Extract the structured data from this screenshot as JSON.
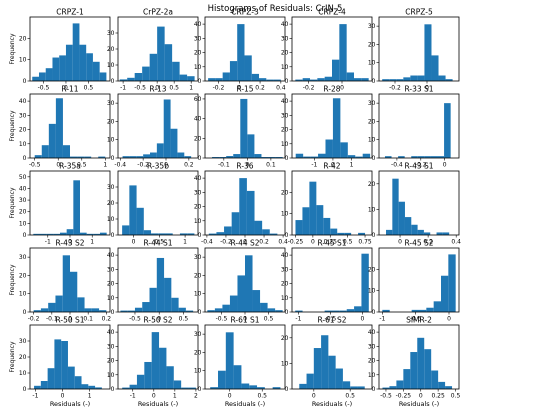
{
  "figure_title": "Histograms of Residuals: CrIN-5",
  "chart_data": [
    {
      "type": "bar",
      "title": "CRPZ-1",
      "xlabel": "",
      "ylabel": "Frequency",
      "xlim": [
        -0.8,
        0.98
      ],
      "ylim": [
        0,
        30
      ],
      "xticks": [
        -0.5,
        0.0,
        0.5
      ],
      "yticks": [
        0,
        10,
        20
      ],
      "bin_edges": [
        -0.75,
        -0.6,
        -0.45,
        -0.3,
        -0.15,
        0.0,
        0.15,
        0.3,
        0.45,
        0.6,
        0.75,
        0.9
      ],
      "values": [
        2,
        4,
        6,
        11,
        12,
        17,
        27,
        17,
        13,
        9,
        4
      ]
    },
    {
      "type": "bar",
      "title": "CrPZ-2a",
      "xlabel": "",
      "ylabel": "",
      "xlim": [
        -1.15,
        1.2
      ],
      "ylim": [
        0,
        40
      ],
      "xticks": [
        -1.0,
        -0.5,
        0.0,
        0.5,
        1.0
      ],
      "yticks": [
        0,
        10,
        20,
        30
      ],
      "bin_edges": [
        -1.1,
        -0.88,
        -0.66,
        -0.44,
        -0.22,
        0.0,
        0.22,
        0.44,
        0.66,
        0.88,
        1.1
      ],
      "values": [
        1,
        2,
        5,
        9,
        17,
        34,
        23,
        12,
        4,
        3
      ]
    },
    {
      "type": "bar",
      "title": "CRPZ-3",
      "xlabel": "",
      "ylabel": "",
      "xlim": [
        -0.33,
        0.44
      ],
      "ylim": [
        0,
        45
      ],
      "xticks": [
        -0.2,
        0.0,
        0.2,
        0.4
      ],
      "yticks": [
        0,
        10,
        20,
        30,
        40
      ],
      "bin_edges": [
        -0.3,
        -0.23,
        -0.16,
        -0.09,
        -0.02,
        0.05,
        0.12,
        0.19,
        0.26,
        0.33,
        0.4
      ],
      "values": [
        2,
        2,
        6,
        14,
        40,
        18,
        5,
        2,
        1,
        1
      ]
    },
    {
      "type": "bar",
      "title": "CRPZ-4",
      "xlabel": "",
      "ylabel": "",
      "xlim": [
        -0.3,
        0.18
      ],
      "ylim": [
        0,
        45
      ],
      "xticks": [
        -0.2,
        0.0
      ],
      "yticks": [
        0,
        10,
        20,
        30,
        40
      ],
      "bin_edges": [
        -0.28,
        -0.236,
        -0.192,
        -0.148,
        -0.104,
        -0.06,
        -0.016,
        0.028,
        0.072,
        0.116,
        0.16
      ],
      "values": [
        1,
        2,
        1,
        2,
        3,
        15,
        40,
        6,
        2,
        2
      ]
    },
    {
      "type": "bar",
      "title": "CRPZ-5",
      "xlabel": "",
      "ylabel": "",
      "xlim": [
        -0.3,
        0.2
      ],
      "ylim": [
        0,
        35
      ],
      "xticks": [
        -0.2,
        0.0
      ],
      "yticks": [
        0,
        10,
        20,
        30
      ],
      "bin_edges": [
        -0.28,
        -0.236,
        -0.192,
        -0.148,
        -0.104,
        -0.06,
        -0.016,
        0.028,
        0.072,
        0.116,
        0.16
      ],
      "values": [
        1,
        1,
        1,
        2,
        3,
        3,
        31,
        14,
        3,
        1
      ]
    },
    {
      "type": "bar",
      "title": "R-11",
      "xlabel": "",
      "ylabel": "Frequency",
      "xlim": [
        -0.6,
        1.1
      ],
      "ylim": [
        0,
        45
      ],
      "xticks": [
        -0.5,
        0.0,
        0.5,
        1.0
      ],
      "yticks": [
        0,
        10,
        20,
        30,
        40
      ],
      "bin_edges": [
        -0.5,
        -0.35,
        -0.2,
        -0.05,
        0.1,
        0.25,
        0.4,
        0.55,
        0.7,
        0.85,
        1.0
      ],
      "values": [
        2,
        9,
        24,
        42,
        9,
        1,
        1,
        1,
        0,
        1
      ]
    },
    {
      "type": "bar",
      "title": "R-13",
      "xlabel": "",
      "ylabel": "",
      "xlim": [
        -0.42,
        0.28
      ],
      "ylim": [
        0,
        35
      ],
      "xticks": [
        -0.4,
        -0.2,
        0.0,
        0.2
      ],
      "yticks": [
        0,
        10,
        20,
        30
      ],
      "bin_edges": [
        -0.38,
        -0.32,
        -0.26,
        -0.2,
        -0.14,
        -0.08,
        -0.02,
        0.04,
        0.1,
        0.16,
        0.22
      ],
      "values": [
        1,
        1,
        1,
        2,
        3,
        8,
        32,
        16,
        3,
        1
      ]
    },
    {
      "type": "bar",
      "title": "R-15",
      "xlabel": "",
      "ylabel": "",
      "xlim": [
        -0.18,
        0.16
      ],
      "ylim": [
        0,
        65
      ],
      "xticks": [
        -0.1,
        0.0,
        0.1
      ],
      "yticks": [
        0,
        20,
        40,
        60
      ],
      "bin_edges": [
        -0.15,
        -0.12,
        -0.09,
        -0.06,
        -0.03,
        0.0,
        0.03,
        0.06,
        0.09,
        0.12,
        0.15
      ],
      "values": [
        1,
        1,
        2,
        4,
        60,
        24,
        4,
        1,
        1,
        1
      ]
    },
    {
      "type": "bar",
      "title": "R-28",
      "xlabel": "",
      "ylabel": "",
      "xlim": [
        -2.2,
        2.1
      ],
      "ylim": [
        0,
        45
      ],
      "xticks": [
        -1,
        0,
        1
      ],
      "yticks": [
        0,
        10,
        20,
        30,
        40
      ],
      "bin_edges": [
        -2.0,
        -1.6,
        -1.2,
        -0.8,
        -0.4,
        0.0,
        0.4,
        0.8,
        1.2,
        1.6,
        2.0
      ],
      "values": [
        3,
        1,
        1,
        3,
        13,
        42,
        11,
        2,
        1,
        3
      ]
    },
    {
      "type": "bar",
      "title": "R-33 S1",
      "xlabel": "",
      "ylabel": "",
      "xlim": [
        -0.55,
        0.12
      ],
      "ylim": [
        0,
        35
      ],
      "xticks": [
        -0.4,
        -0.2,
        0.0
      ],
      "yticks": [
        0,
        10,
        20,
        30
      ],
      "bin_edges": [
        -0.5,
        -0.445,
        -0.39,
        -0.335,
        -0.28,
        -0.225,
        -0.17,
        -0.115,
        -0.06,
        -0.005,
        0.05
      ],
      "values": [
        1,
        0,
        1,
        0,
        1,
        1,
        1,
        1,
        1,
        30
      ]
    },
    {
      "type": "bar",
      "title": "R-35a",
      "xlabel": "",
      "ylabel": "Frequency",
      "xlim": [
        -1.8,
        1.8
      ],
      "ylim": [
        0,
        55
      ],
      "xticks": [
        -1,
        0,
        1
      ],
      "yticks": [
        0,
        10,
        20,
        30,
        40,
        50
      ],
      "bin_edges": [
        -1.65,
        -1.35,
        -1.05,
        -0.75,
        -0.45,
        -0.15,
        0.15,
        0.45,
        0.75,
        1.05,
        1.35,
        1.65
      ],
      "values": [
        1,
        1,
        1,
        1,
        2,
        5,
        47,
        2,
        1,
        1,
        2
      ]
    },
    {
      "type": "bar",
      "title": "R-35b",
      "xlabel": "",
      "ylabel": "",
      "xlim": [
        -0.3,
        1.25
      ],
      "ylim": [
        0,
        40
      ],
      "xticks": [
        0.0,
        0.5,
        1.0
      ],
      "yticks": [
        0,
        10,
        20,
        30
      ],
      "bin_edges": [
        -0.22,
        -0.08,
        0.06,
        0.2,
        0.34,
        0.48,
        0.62,
        0.76,
        0.9,
        1.04,
        1.18
      ],
      "values": [
        6,
        31,
        17,
        3,
        1,
        1,
        1,
        0,
        1,
        1
      ]
    },
    {
      "type": "bar",
      "title": "R-36",
      "xlabel": "",
      "ylabel": "",
      "xlim": [
        -0.42,
        0.42
      ],
      "ylim": [
        0,
        45
      ],
      "xticks": [
        -0.4,
        -0.2,
        0.0,
        0.2,
        0.4
      ],
      "yticks": [
        0,
        10,
        20,
        30,
        40
      ],
      "bin_edges": [
        -0.38,
        -0.3,
        -0.22,
        -0.14,
        -0.06,
        0.02,
        0.1,
        0.18,
        0.26,
        0.34
      ],
      "values": [
        1,
        2,
        6,
        16,
        40,
        31,
        10,
        4,
        1
      ]
    },
    {
      "type": "bar",
      "title": "R-42",
      "xlabel": "",
      "ylabel": "",
      "xlim": [
        -0.3,
        0.85
      ],
      "ylim": [
        0,
        30
      ],
      "xticks": [
        -0.25,
        0.0,
        0.25,
        0.5,
        0.75
      ],
      "yticks": [
        0,
        10,
        20
      ],
      "bin_edges": [
        -0.25,
        -0.15,
        -0.05,
        0.05,
        0.15,
        0.25,
        0.35,
        0.45,
        0.55,
        0.65,
        0.75
      ],
      "values": [
        7,
        13,
        25,
        14,
        8,
        3,
        1,
        1,
        0,
        1
      ]
    },
    {
      "type": "bar",
      "title": "R-43 S1",
      "xlabel": "",
      "ylabel": "",
      "xlim": [
        -0.15,
        0.42
      ],
      "ylim": [
        0,
        25
      ],
      "xticks": [
        0.0,
        0.2,
        0.4
      ],
      "yticks": [
        0,
        10,
        20
      ],
      "bin_edges": [
        -0.1,
        -0.055,
        -0.01,
        0.035,
        0.08,
        0.125,
        0.17,
        0.215,
        0.26,
        0.305,
        0.35
      ],
      "values": [
        2,
        22,
        13,
        7,
        4,
        2,
        1,
        0,
        1,
        1
      ]
    },
    {
      "type": "bar",
      "title": "R-43 S2",
      "xlabel": "",
      "ylabel": "Frequency",
      "xlim": [
        -0.22,
        0.22
      ],
      "ylim": [
        0,
        35
      ],
      "xticks": [
        -0.2,
        -0.1,
        0.0,
        0.1,
        0.2
      ],
      "yticks": [
        0,
        10,
        20,
        30
      ],
      "bin_edges": [
        -0.2,
        -0.16,
        -0.12,
        -0.08,
        -0.04,
        0.0,
        0.04,
        0.08,
        0.12,
        0.16,
        0.2
      ],
      "values": [
        1,
        2,
        5,
        9,
        31,
        22,
        8,
        2,
        2,
        1
      ]
    },
    {
      "type": "bar",
      "title": "R-44 S1",
      "xlabel": "",
      "ylabel": "",
      "xlim": [
        -0.85,
        0.8
      ],
      "ylim": [
        0,
        45
      ],
      "xticks": [
        -0.5,
        0.0,
        0.5
      ],
      "yticks": [
        0,
        10,
        20,
        30,
        40
      ],
      "bin_edges": [
        -0.8,
        -0.65,
        -0.5,
        -0.35,
        -0.2,
        -0.05,
        0.1,
        0.25,
        0.4,
        0.55,
        0.7
      ],
      "values": [
        1,
        1,
        3,
        7,
        17,
        38,
        24,
        10,
        3,
        1
      ]
    },
    {
      "type": "bar",
      "title": "R-44 S2",
      "xlabel": "",
      "ylabel": "",
      "xlim": [
        -0.85,
        0.85
      ],
      "ylim": [
        0,
        35
      ],
      "xticks": [
        -0.5,
        0.0,
        0.5
      ],
      "yticks": [
        0,
        10,
        20,
        30
      ],
      "bin_edges": [
        -0.8,
        -0.64,
        -0.48,
        -0.32,
        -0.16,
        0.0,
        0.16,
        0.32,
        0.48,
        0.64,
        0.8
      ],
      "values": [
        1,
        2,
        4,
        9,
        20,
        31,
        12,
        5,
        2,
        1
      ]
    },
    {
      "type": "bar",
      "title": "R-45 S1",
      "xlabel": "",
      "ylabel": "",
      "xlim": [
        -1.1,
        0.15
      ],
      "ylim": [
        0,
        45
      ],
      "xticks": [
        -1.0,
        -0.5,
        0.0
      ],
      "yticks": [
        0,
        10,
        20,
        30,
        40
      ],
      "bin_edges": [
        -1.05,
        -0.935,
        -0.82,
        -0.705,
        -0.59,
        -0.475,
        -0.36,
        -0.245,
        -0.13,
        -0.015,
        0.1
      ],
      "values": [
        1,
        0,
        0,
        0,
        1,
        1,
        1,
        2,
        4,
        41
      ]
    },
    {
      "type": "bar",
      "title": "R-45 S2",
      "xlabel": "",
      "ylabel": "",
      "xlim": [
        -1.05,
        0.15
      ],
      "ylim": [
        0,
        30
      ],
      "xticks": [
        -1.0,
        -0.5,
        0.0
      ],
      "yticks": [
        0,
        10,
        20
      ],
      "bin_edges": [
        -1.0,
        -0.89,
        -0.78,
        -0.67,
        -0.56,
        -0.45,
        -0.34,
        -0.23,
        -0.12,
        -0.01,
        0.1
      ],
      "values": [
        1,
        0,
        0,
        0,
        1,
        1,
        2,
        5,
        17,
        27
      ]
    },
    {
      "type": "bar",
      "title": "R-50 S1",
      "xlabel": "Residuals (-)",
      "ylabel": "Frequency",
      "xlim": [
        -1.2,
        1.75
      ],
      "ylim": [
        0,
        40
      ],
      "xticks": [
        -1,
        0,
        1
      ],
      "yticks": [
        0,
        10,
        20,
        30
      ],
      "bin_edges": [
        -1.05,
        -0.8,
        -0.55,
        -0.3,
        -0.05,
        0.2,
        0.45,
        0.7,
        0.95,
        1.2,
        1.45
      ],
      "values": [
        2,
        5,
        13,
        31,
        30,
        14,
        8,
        3,
        2,
        1
      ]
    },
    {
      "type": "bar",
      "title": "R-50 S2",
      "xlabel": "Residuals (-)",
      "ylabel": "",
      "xlim": [
        -1.7,
        2.1
      ],
      "ylim": [
        0,
        45
      ],
      "xticks": [
        -1,
        0,
        1,
        2
      ],
      "yticks": [
        0,
        10,
        20,
        30,
        40
      ],
      "bin_edges": [
        -1.5,
        -1.15,
        -0.8,
        -0.45,
        -0.1,
        0.25,
        0.6,
        0.95,
        1.3,
        1.65,
        2.0
      ],
      "values": [
        1,
        3,
        10,
        19,
        40,
        29,
        16,
        6,
        1,
        1
      ]
    },
    {
      "type": "bar",
      "title": "R-61 S1",
      "xlabel": "Residuals (-)",
      "ylabel": "",
      "xlim": [
        -0.38,
        0.85
      ],
      "ylim": [
        0,
        35
      ],
      "xticks": [
        0.0,
        0.5
      ],
      "yticks": [
        0,
        10,
        20,
        30
      ],
      "bin_edges": [
        -0.3,
        -0.18,
        -0.06,
        0.06,
        0.18,
        0.3,
        0.42,
        0.54,
        0.66,
        0.78
      ],
      "values": [
        1,
        10,
        31,
        13,
        3,
        2,
        1,
        0,
        1
      ]
    },
    {
      "type": "bar",
      "title": "R-61 S2",
      "xlabel": "Residuals (-)",
      "ylabel": "",
      "xlim": [
        -0.3,
        0.8
      ],
      "ylim": [
        0,
        25
      ],
      "xticks": [
        0.0,
        0.5
      ],
      "yticks": [
        0,
        10,
        20
      ],
      "bin_edges": [
        -0.2,
        -0.1,
        0.0,
        0.1,
        0.2,
        0.3,
        0.4,
        0.5,
        0.6,
        0.7
      ],
      "values": [
        2,
        6,
        16,
        21,
        13,
        8,
        3,
        1,
        1
      ]
    },
    {
      "type": "bar",
      "title": "SIMR-2",
      "xlabel": "Residuals (-)",
      "ylabel": "",
      "xlim": [
        -0.6,
        0.55
      ],
      "ylim": [
        0,
        45
      ],
      "xticks": [
        -0.5,
        -0.25,
        0.0,
        0.25,
        0.5
      ],
      "yticks": [
        0,
        10,
        20,
        30,
        40
      ],
      "bin_edges": [
        -0.55,
        -0.45,
        -0.35,
        -0.25,
        -0.15,
        -0.05,
        0.05,
        0.15,
        0.25,
        0.35,
        0.45
      ],
      "values": [
        1,
        2,
        6,
        14,
        26,
        36,
        28,
        13,
        5,
        2
      ]
    }
  ]
}
